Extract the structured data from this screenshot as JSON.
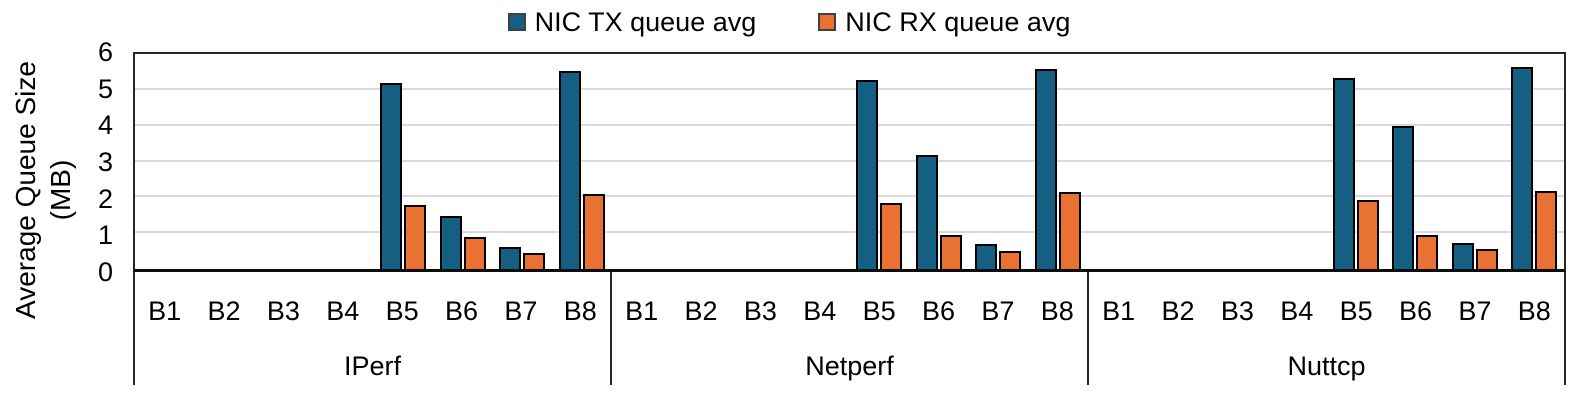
{
  "chart_data": {
    "type": "bar",
    "title": "",
    "ylabel": "Average Queue Size (MB)",
    "ylabel_lines": [
      "Average Queue Size",
      "(MB)"
    ],
    "xlabel": "",
    "ylim": [
      0,
      6
    ],
    "yticks": [
      0,
      1,
      2,
      3,
      4,
      5,
      6
    ],
    "grid": true,
    "legend_position": "top-center",
    "groups": [
      "IPerf",
      "Netperf",
      "Nuttcp"
    ],
    "categories": [
      "B1",
      "B2",
      "B3",
      "B4",
      "B5",
      "B6",
      "B7",
      "B8"
    ],
    "series": [
      {
        "name": "NIC TX queue avg",
        "color": "#156082",
        "values": {
          "IPerf": [
            0,
            0,
            0,
            0,
            5.2,
            1.5,
            0.62,
            5.55
          ],
          "Netperf": [
            0,
            0,
            0,
            0,
            5.3,
            3.2,
            0.7,
            5.6
          ],
          "Nuttcp": [
            0,
            0,
            0,
            0,
            5.35,
            4.0,
            0.75,
            5.65
          ]
        }
      },
      {
        "name": "NIC RX queue avg",
        "color": "#E97132",
        "values": {
          "IPerf": [
            0,
            0,
            0,
            0,
            1.8,
            0.9,
            0.46,
            2.1
          ],
          "Netperf": [
            0,
            0,
            0,
            0,
            1.85,
            0.95,
            0.52,
            2.15
          ],
          "Nuttcp": [
            0,
            0,
            0,
            0,
            1.95,
            0.95,
            0.58,
            2.2
          ]
        }
      }
    ]
  },
  "colors": {
    "background": "#FFFFFF",
    "axis_box": "#262626",
    "gridline": "#D9D9D9",
    "bar_border": "#000000",
    "text": "#000000"
  }
}
